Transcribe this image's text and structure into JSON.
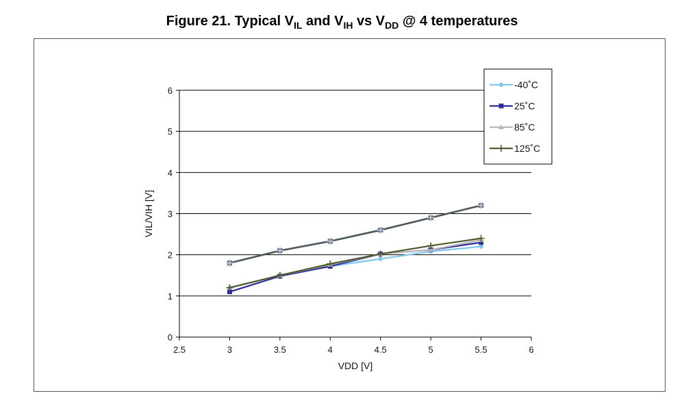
{
  "figure": {
    "title_prefix": "Figure 21. Typical V",
    "title_sub1": "IL",
    "title_mid": " and V",
    "title_sub2": "IH",
    "title_mid2": " vs V",
    "title_sub3": "DD",
    "title_suffix": " @ 4 temperatures"
  },
  "chart_data": {
    "type": "line",
    "xlabel": "VDD [V]",
    "ylabel": "VIL/VIH [V]",
    "xlim": [
      2.5,
      6
    ],
    "ylim": [
      0,
      6
    ],
    "x_ticks": [
      "2.5",
      "3",
      "3.5",
      "4",
      "4.5",
      "5",
      "5.5",
      "6"
    ],
    "y_ticks": [
      "0",
      "1",
      "2",
      "3",
      "4",
      "5",
      "6"
    ],
    "grid": "horizontal",
    "legend_position": "top-right",
    "x": [
      3,
      3.5,
      4,
      4.5,
      5,
      5.5
    ],
    "series": [
      {
        "name": "-40°C",
        "group": "VIH",
        "color": "#7ec8ee",
        "marker": "diamond",
        "values": [
          1.8,
          2.1,
          2.33,
          2.6,
          2.9,
          3.2
        ]
      },
      {
        "name": "-40°C",
        "group": "VIL",
        "color": "#7ec8ee",
        "marker": "diamond",
        "values": [
          1.2,
          1.5,
          1.72,
          1.9,
          2.08,
          2.2
        ]
      },
      {
        "name": "25°C",
        "group": "VIH",
        "color": "#2e2e9a",
        "marker": "square",
        "values": [
          1.8,
          2.1,
          2.33,
          2.6,
          2.9,
          3.2
        ]
      },
      {
        "name": "25°C",
        "group": "VIL",
        "color": "#2e2e9a",
        "marker": "square",
        "values": [
          1.1,
          1.48,
          1.72,
          2.02,
          2.12,
          2.3
        ]
      },
      {
        "name": "85°C",
        "group": "VIH",
        "color": "#b8b8b8",
        "marker": "triangle",
        "values": [
          1.8,
          2.1,
          2.33,
          2.6,
          2.9,
          3.2
        ]
      },
      {
        "name": "85°C",
        "group": "VIL",
        "color": "#b8b8b8",
        "marker": "triangle",
        "values": [
          1.2,
          1.5,
          1.76,
          2.02,
          2.12,
          2.36
        ]
      },
      {
        "name": "125°C",
        "group": "VIH",
        "color": "#4a5a2a",
        "marker": "plus",
        "values": [
          1.8,
          2.1,
          2.33,
          2.6,
          2.9,
          3.2
        ]
      },
      {
        "name": "125°C",
        "group": "VIL",
        "color": "#4a5a2a",
        "marker": "plus",
        "values": [
          1.2,
          1.5,
          1.78,
          2.02,
          2.22,
          2.4
        ]
      }
    ],
    "legend": [
      {
        "label": "-40˚C",
        "color": "#7ec8ee",
        "marker": "diamond"
      },
      {
        "label": "25˚C",
        "color": "#2e2e9a",
        "marker": "square"
      },
      {
        "label": "85˚C",
        "color": "#b8b8b8",
        "marker": "triangle"
      },
      {
        "label": "125˚C",
        "color": "#4a5a2a",
        "marker": "plus"
      }
    ],
    "overlay_line_color": "#4d5a60"
  }
}
